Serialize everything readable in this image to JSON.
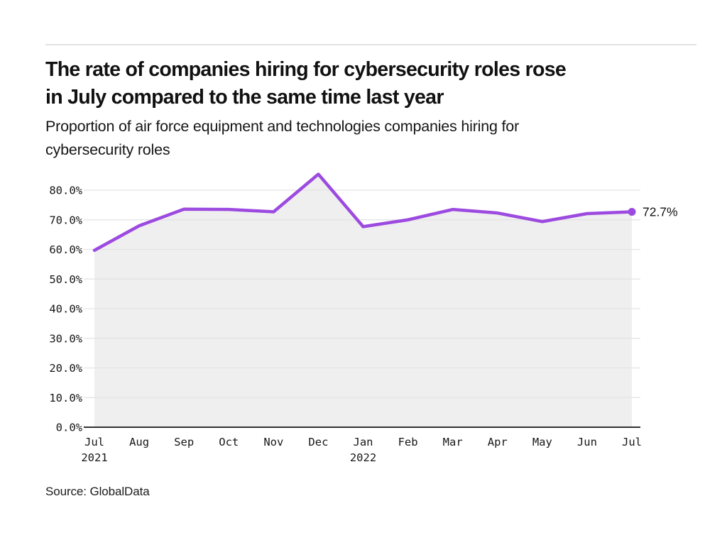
{
  "header": {
    "title_lines": [
      "The rate of companies hiring for cybersecurity roles rose",
      "in July compared to the same time last year"
    ],
    "subtitle_lines": [
      "Proportion of air force equipment and technologies companies hiring for",
      "cybersecurity roles"
    ]
  },
  "chart_data": {
    "type": "area",
    "title": "Proportion of air force equipment and technologies companies hiring for cybersecurity roles",
    "x_ticks": [
      {
        "month": "Jul",
        "year": "2021"
      },
      {
        "month": "Aug"
      },
      {
        "month": "Sep"
      },
      {
        "month": "Oct"
      },
      {
        "month": "Nov"
      },
      {
        "month": "Dec"
      },
      {
        "month": "Jan",
        "year": "2022"
      },
      {
        "month": "Feb"
      },
      {
        "month": "Mar"
      },
      {
        "month": "Apr"
      },
      {
        "month": "May"
      },
      {
        "month": "Jun"
      },
      {
        "month": "Jul"
      }
    ],
    "values": [
      59.7,
      68.0,
      73.6,
      73.5,
      72.7,
      85.4,
      67.7,
      70.0,
      73.5,
      72.3,
      69.4,
      72.1,
      72.7
    ],
    "y_ticks": [
      {
        "value": 0,
        "label": "0.0%"
      },
      {
        "value": 10,
        "label": "10.0%"
      },
      {
        "value": 20,
        "label": "20.0%"
      },
      {
        "value": 30,
        "label": "30.0%"
      },
      {
        "value": 40,
        "label": "40.0%"
      },
      {
        "value": 50,
        "label": "50.0%"
      },
      {
        "value": 60,
        "label": "60.0%"
      },
      {
        "value": 70,
        "label": "70.0%"
      },
      {
        "value": 80,
        "label": "80.0%"
      }
    ],
    "ylim": [
      0,
      86.7
    ],
    "grid": true,
    "legend": false,
    "end_point_label": "72.7%",
    "colors": {
      "line": "#9c4ae0",
      "fill": "#efefef",
      "grid": "#e3e3e3",
      "axis": "#323232",
      "tick_text": "#161616",
      "annotation_text": "#111111"
    }
  },
  "footer": {
    "source": "Source: GlobalData"
  }
}
